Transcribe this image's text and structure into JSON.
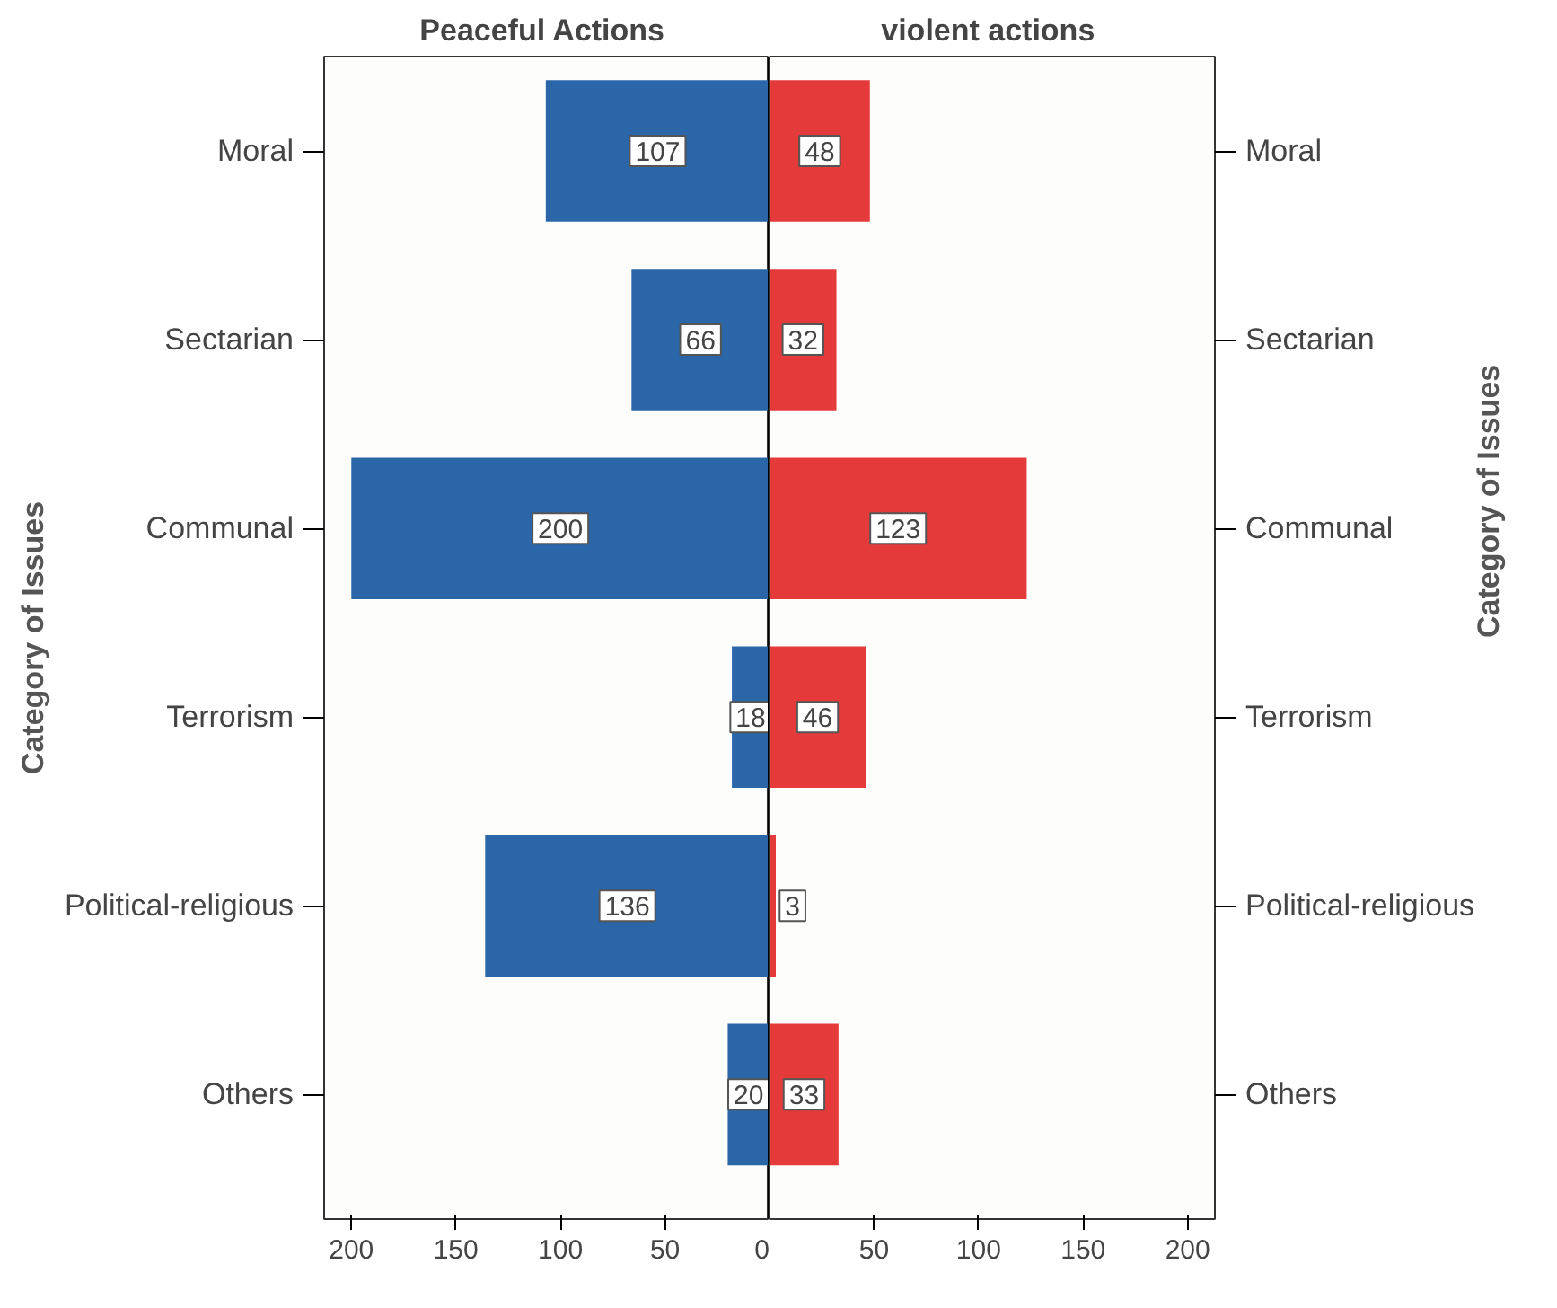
{
  "chart_data": [
    {
      "type": "bar",
      "orientation": "horizontal",
      "title": "Peaceful  Actions",
      "categories": [
        "Moral",
        "Sectarian",
        "Communal",
        "Terrorism",
        "Political-religious",
        "Others"
      ],
      "series": [
        {
          "color": "#2a66a8",
          "values": [
            107,
            66,
            200,
            18,
            136,
            20
          ]
        }
      ],
      "data_labels": true,
      "xlim": [
        213,
        0
      ],
      "xticks": [
        200,
        150,
        100,
        50,
        0
      ],
      "ylabel": "Category of Issues",
      "ref_lines": [
        {
          "axis": "x",
          "value": 0,
          "color": "#000000"
        }
      ],
      "grid": false
    },
    {
      "type": "bar",
      "orientation": "horizontal",
      "title": "violent  actions",
      "categories": [
        "Moral",
        "Sectarian",
        "Communal",
        "Terrorism",
        "Political-religious",
        "Others"
      ],
      "series": [
        {
          "color": "#e53a3a",
          "values": [
            48,
            32,
            123,
            46,
            3,
            33
          ]
        }
      ],
      "data_labels": true,
      "xlim": [
        0,
        213
      ],
      "xticks": [
        50,
        100,
        150,
        200
      ],
      "y2label": "Category of Issues",
      "grid": false
    }
  ]
}
